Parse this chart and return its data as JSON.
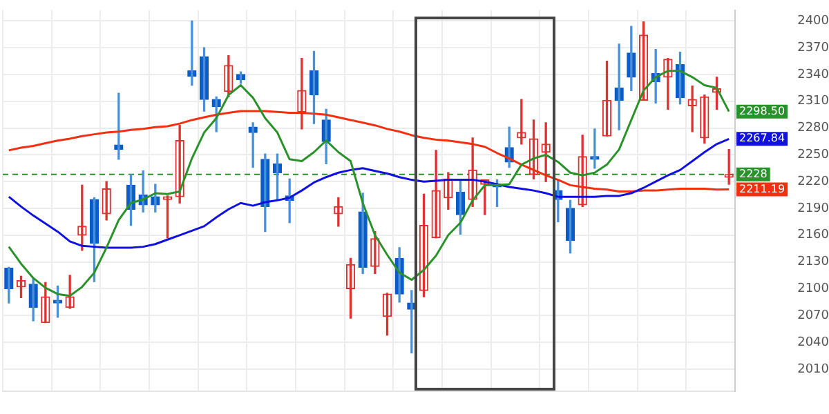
{
  "chart_data": {
    "type": "candlestick",
    "categories": [
      null,
      null,
      null,
      null,
      null,
      null,
      null,
      null,
      null,
      null,
      null,
      null,
      null,
      null,
      null,
      null,
      null,
      null,
      null,
      null,
      null,
      null,
      null,
      null,
      null,
      null,
      null,
      null,
      null,
      null,
      null,
      null,
      null,
      null,
      null,
      null,
      null,
      null,
      null,
      null,
      null,
      null,
      null,
      null,
      null,
      null,
      null,
      null,
      null,
      null,
      null,
      null,
      null,
      null,
      null,
      null,
      null,
      null,
      null,
      null
    ],
    "ohlc": [
      [
        2123,
        2124,
        2084,
        2100
      ],
      [
        2102,
        2114,
        2090,
        2109
      ],
      [
        2105,
        2111,
        2064,
        2079
      ],
      [
        2062,
        2107,
        2062,
        2091
      ],
      [
        2087,
        2103,
        2068,
        2084
      ],
      [
        2079,
        2115,
        2078,
        2091
      ],
      [
        2160,
        2216,
        2143,
        2170
      ],
      [
        2200,
        2202,
        2108,
        2151
      ],
      [
        2184,
        2220,
        2177,
        2212
      ],
      [
        2261,
        2319,
        2245,
        2256
      ],
      [
        2216,
        2228,
        2171,
        2189
      ],
      [
        2205,
        2232,
        2186,
        2194
      ],
      [
        2203,
        2217,
        2186,
        2194
      ],
      [
        2200,
        2204,
        2157,
        2203
      ],
      [
        2203,
        2283,
        2196,
        2266
      ],
      [
        2344,
        2400,
        2328,
        2338
      ],
      [
        2360,
        2370,
        2299,
        2312
      ],
      [
        2312,
        2315,
        2276,
        2304
      ],
      [
        2321,
        2361,
        2315,
        2350
      ],
      [
        2340,
        2343,
        2330,
        2334
      ],
      [
        2281,
        2286,
        2236,
        2275
      ],
      [
        2245,
        2251,
        2164,
        2192
      ],
      [
        2240,
        2251,
        2200,
        2230
      ],
      [
        2204,
        2223,
        2174,
        2199
      ],
      [
        2298,
        2358,
        2279,
        2322
      ],
      [
        2344,
        2366,
        2285,
        2317
      ],
      [
        2289,
        2301,
        2240,
        2265
      ],
      [
        2184,
        2202,
        2170,
        2192
      ],
      [
        2100,
        2134,
        2067,
        2127
      ],
      [
        2186,
        2207,
        2117,
        2124
      ],
      [
        2125,
        2164,
        2117,
        2156
      ],
      [
        2069,
        2095,
        2048,
        2094
      ],
      [
        2134,
        2146,
        2085,
        2094
      ],
      [
        2084,
        2098,
        2028,
        2077
      ],
      [
        2098,
        2206,
        2091,
        2171
      ],
      [
        2157,
        2255,
        2157,
        2210
      ],
      [
        2202,
        2230,
        2189,
        2223
      ],
      [
        2208,
        2222,
        2161,
        2183
      ],
      [
        2200,
        2269,
        2192,
        2233
      ],
      [
        2217,
        2222,
        2183,
        2222
      ],
      [
        2217,
        2222,
        2192,
        2214
      ],
      [
        2258,
        2281,
        2236,
        2242
      ],
      [
        2269,
        2312,
        2262,
        2275
      ],
      [
        2228,
        2289,
        2223,
        2268
      ],
      [
        2253,
        2286,
        2220,
        2262
      ],
      [
        2210,
        2222,
        2175,
        2200
      ],
      [
        2190,
        2199,
        2140,
        2154
      ],
      [
        2194,
        2272,
        2192,
        2248
      ],
      [
        2248,
        2279,
        2235,
        2245
      ],
      [
        2271,
        2355,
        2271,
        2311
      ],
      [
        2325,
        2374,
        2278,
        2311
      ],
      [
        2364,
        2394,
        2322,
        2337
      ],
      [
        2311,
        2399,
        2311,
        2384
      ],
      [
        2341,
        2368,
        2308,
        2332
      ],
      [
        2337,
        2358,
        2301,
        2357
      ],
      [
        2351,
        2365,
        2307,
        2314
      ],
      [
        2305,
        2327,
        2276,
        2312
      ],
      [
        2269,
        2317,
        2263,
        2315
      ],
      [
        2320,
        2337,
        2301,
        2324
      ],
      [
        2225,
        2256,
        2217,
        2228
      ]
    ],
    "series": [
      {
        "type": "line",
        "color": "#2a922a",
        "values": [
          2147,
          2128,
          2112,
          2101,
          2094,
          2092,
          2102,
          2118,
          2146,
          2177,
          2196,
          2200,
          2207,
          2206,
          2209,
          2246,
          2275,
          2291,
          2317,
          2328,
          2314,
          2291,
          2275,
          2245,
          2243,
          2253,
          2266,
          2253,
          2243,
          2196,
          2160,
          2138,
          2118,
          2110,
          2121,
          2137,
          2160,
          2174,
          2199,
          2216,
          2216,
          2217,
          2239,
          2246,
          2250,
          2242,
          2230,
          2227,
          2230,
          2239,
          2256,
          2289,
          2322,
          2337,
          2344,
          2344,
          2337,
          2328,
          2325,
          2298.5
        ],
        "value_labels": [
          null,
          null,
          null,
          null,
          null,
          null,
          null,
          null,
          null,
          null,
          null,
          null,
          null,
          null,
          null,
          null,
          null,
          null,
          null,
          null,
          null,
          null,
          null,
          null,
          null,
          null,
          null,
          null,
          null,
          null,
          null,
          null,
          null,
          null,
          null,
          null,
          null,
          null,
          null,
          null,
          null,
          null,
          null,
          null,
          null,
          null,
          null,
          null,
          null,
          null,
          null,
          null,
          null,
          null,
          null,
          null,
          null,
          null,
          null,
          "2298.50"
        ]
      },
      {
        "type": "line",
        "color": "#1010e0",
        "values": [
          2203,
          2192,
          2182,
          2173,
          2164,
          2153,
          2148,
          2147,
          2146,
          2146,
          2146,
          2147,
          2150,
          2155,
          2160,
          2165,
          2170,
          2180,
          2189,
          2196,
          2193,
          2197,
          2199,
          2202,
          2210,
          2219,
          2225,
          2230,
          2233,
          2235,
          2232,
          2229,
          2225,
          2222,
          2220,
          2221,
          2222,
          2222,
          2222,
          2220,
          2217,
          2214,
          2212,
          2210,
          2207,
          2203,
          2203,
          2203,
          2203,
          2204,
          2204,
          2207,
          2213,
          2220,
          2227,
          2233,
          2243,
          2253,
          2262,
          2267.84
        ],
        "value_labels": [
          null,
          null,
          null,
          null,
          null,
          null,
          null,
          null,
          null,
          null,
          null,
          null,
          null,
          null,
          null,
          null,
          null,
          null,
          null,
          null,
          null,
          null,
          null,
          null,
          null,
          null,
          null,
          null,
          null,
          null,
          null,
          null,
          null,
          null,
          null,
          null,
          null,
          null,
          null,
          null,
          null,
          null,
          null,
          null,
          null,
          null,
          null,
          null,
          null,
          null,
          null,
          null,
          null,
          null,
          null,
          null,
          null,
          null,
          null,
          "2267.84"
        ]
      },
      {
        "type": "line",
        "color": "#f03010",
        "values": [
          2255,
          2258,
          2260,
          2263,
          2266,
          2268,
          2271,
          2273,
          2275,
          2276,
          2278,
          2279,
          2281,
          2282,
          2285,
          2289,
          2292,
          2295,
          2297,
          2299,
          2299,
          2299,
          2298,
          2297,
          2297,
          2296,
          2295,
          2292,
          2289,
          2286,
          2283,
          2279,
          2276,
          2272,
          2269,
          2267,
          2266,
          2264,
          2262,
          2259,
          2252,
          2246,
          2239,
          2233,
          2227,
          2222,
          2216,
          2214,
          2212,
          2211,
          2209,
          2209,
          2210,
          2210,
          2211,
          2212,
          2212,
          2212,
          2211,
          2211.19
        ],
        "value_labels": [
          null,
          null,
          null,
          null,
          null,
          null,
          null,
          null,
          null,
          null,
          null,
          null,
          null,
          null,
          null,
          null,
          null,
          null,
          null,
          null,
          null,
          null,
          null,
          null,
          null,
          null,
          null,
          null,
          null,
          null,
          null,
          null,
          null,
          null,
          null,
          null,
          null,
          null,
          null,
          null,
          null,
          null,
          null,
          null,
          null,
          null,
          null,
          null,
          null,
          null,
          null,
          null,
          null,
          null,
          null,
          null,
          null,
          null,
          null,
          "2211.19"
        ]
      }
    ],
    "ref_lines": [
      {
        "axis": "y",
        "value": 2228,
        "label": "2228",
        "color": "#2a922a",
        "line_style": "dashed"
      }
    ],
    "ylim": [
      1985,
      2412
    ],
    "yticks": [
      2010,
      2040,
      2070,
      2100,
      2130,
      2160,
      2190,
      2220,
      2250,
      2280,
      2310,
      2340,
      2370,
      2400
    ],
    "grid": true,
    "marker": "none",
    "line_style": "solid"
  }
}
